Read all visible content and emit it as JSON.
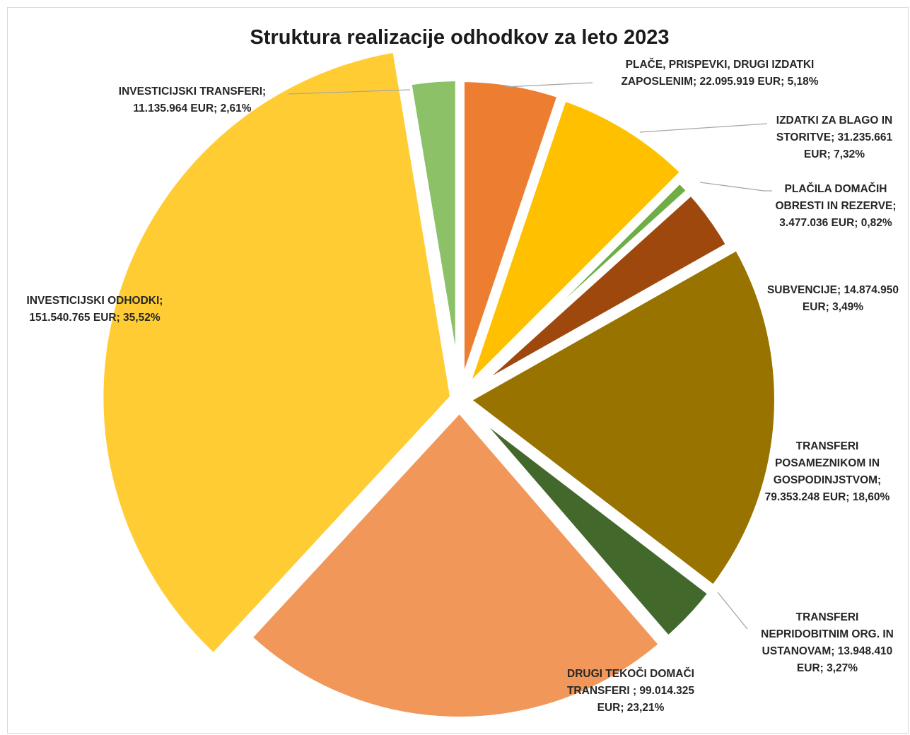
{
  "chart_data": {
    "type": "pie",
    "title": "Struktura realizacije odhodkov za leto 2023",
    "slices": [
      {
        "label_lines": [
          "PLAČE, PRISPEVKI, DRUGI IZDATKI",
          "ZAPOSLENIM; 22.095.919 EUR; 5,18%"
        ],
        "value": 22095919,
        "percent": 5.18,
        "color": "#ed7d31"
      },
      {
        "label_lines": [
          "IZDATKI ZA BLAGO IN",
          "STORITVE; 31.235.661",
          "EUR; 7,32%"
        ],
        "value": 31235661,
        "percent": 7.32,
        "color": "#ffc000"
      },
      {
        "label_lines": [
          "PLAČILA DOMAČIH",
          "OBRESTI IN REZERVE;",
          "3.477.036 EUR; 0,82%"
        ],
        "value": 3477036,
        "percent": 0.82,
        "color": "#70ad47"
      },
      {
        "label_lines": [
          "SUBVENCIJE; 14.874.950",
          "EUR; 3,49%"
        ],
        "value": 14874950,
        "percent": 3.49,
        "color": "#9e480e"
      },
      {
        "label_lines": [
          "TRANSFERI",
          "POSAMEZNIKOM IN",
          "GOSPODINJSTVOM;",
          "79.353.248 EUR; 18,60%"
        ],
        "value": 79353248,
        "percent": 18.6,
        "color": "#997300"
      },
      {
        "label_lines": [
          "TRANSFERI",
          "NEPRIDOBITNIM ORG. IN",
          "USTANOVAM; 13.948.410",
          "EUR; 3,27%"
        ],
        "value": 13948410,
        "percent": 3.27,
        "color": "#43682b"
      },
      {
        "label_lines": [
          "DRUGI TEKOČI DOMAČI",
          "TRANSFERI ; 99.014.325",
          "EUR; 23,21%"
        ],
        "value": 99014325,
        "percent": 23.21,
        "color": "#f1975a"
      },
      {
        "label_lines": [
          "INVESTICIJSKI ODHODKI;",
          "151.540.765 EUR; 35,52%"
        ],
        "value": 151540765,
        "percent": 35.52,
        "color": "#ffcd33"
      },
      {
        "label_lines": [
          "INVESTICIJSKI TRANSFERI;",
          "11.135.964 EUR; 2,61%"
        ],
        "value": 11135964,
        "percent": 2.61,
        "color": "#8cc168"
      }
    ],
    "legend": "none",
    "leader_color": "#a6a6a6"
  }
}
